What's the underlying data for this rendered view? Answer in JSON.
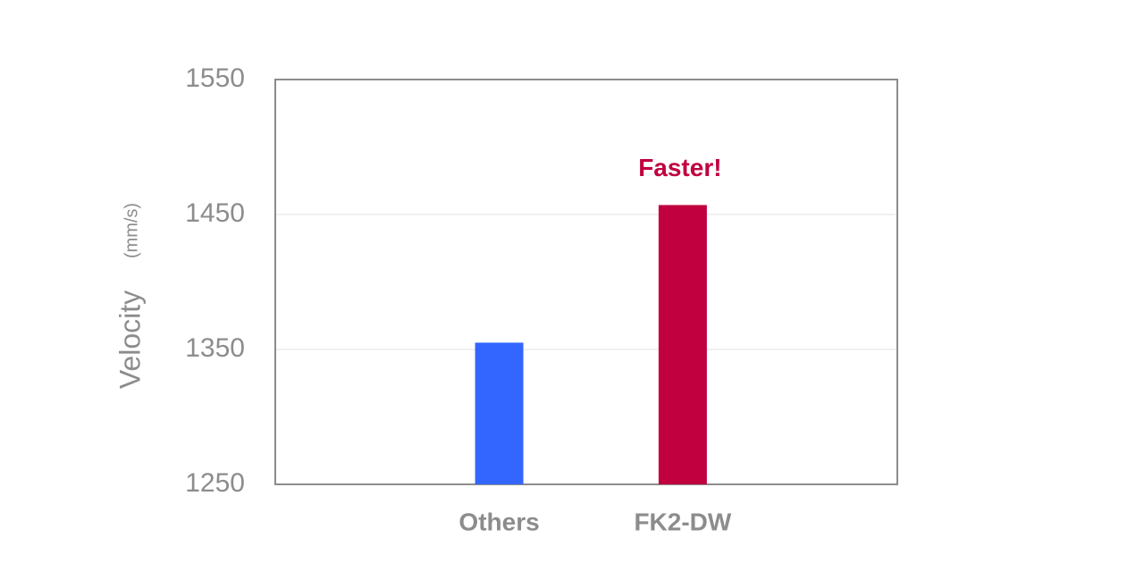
{
  "chart_data": {
    "type": "bar",
    "ylabel": "Velocity",
    "yunit": "(mm/s)",
    "categories": [
      "Others",
      "FK2-DW"
    ],
    "values": [
      1355,
      1457
    ],
    "colors": [
      "#3366ff",
      "#c0003f"
    ],
    "annotation": "Faster!",
    "ylim": [
      1250,
      1550
    ],
    "yticks": [
      1250,
      1350,
      1450,
      1550
    ],
    "grid": true
  }
}
